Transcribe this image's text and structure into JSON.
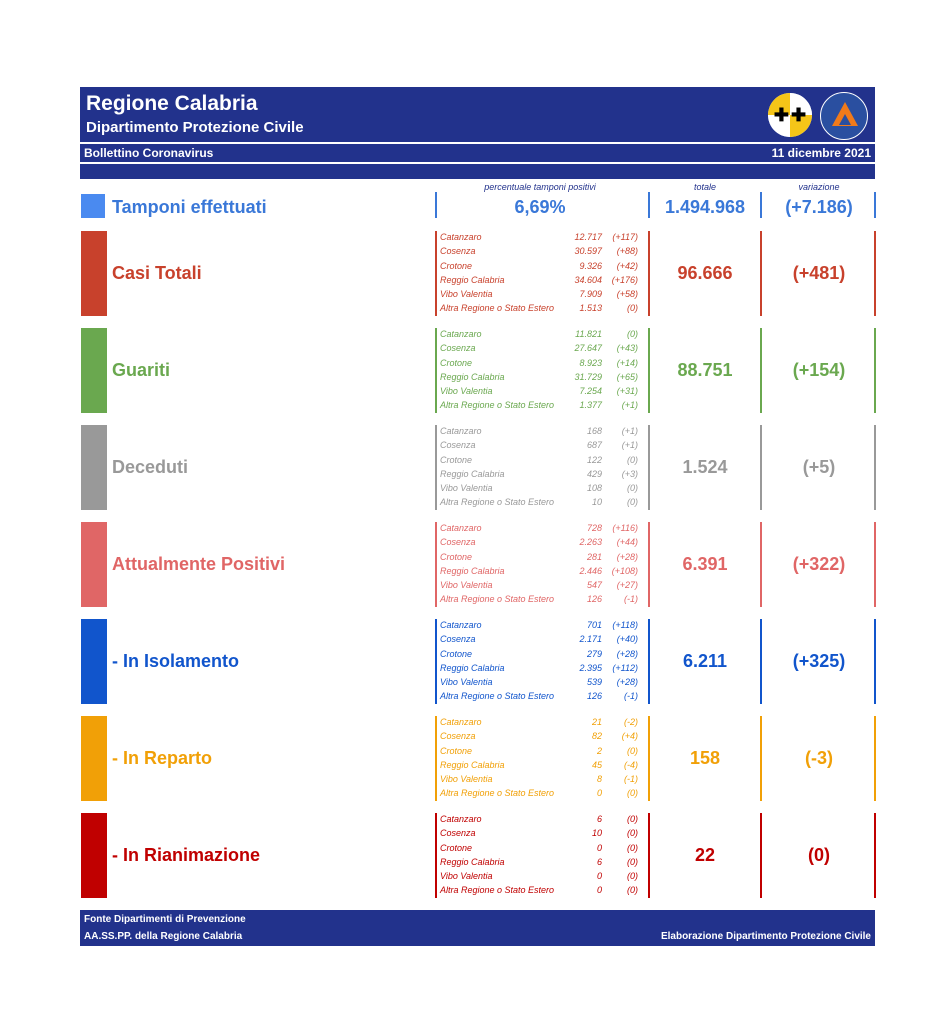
{
  "header": {
    "title": "Regione Calabria",
    "subtitle": "Dipartimento Protezione Civile",
    "bulletin": "Bollettino Coronavirus",
    "date": "11 dicembre 2021"
  },
  "columns": {
    "pct_label": "percentuale tamponi positivi",
    "total_label": "totale",
    "var_label": "variazione"
  },
  "tamponi": {
    "label": "Tamponi effettuati",
    "pct": "6,69%",
    "total": "1.494.968",
    "variation": "(+7.186)",
    "color": "#3a78d8"
  },
  "sections": [
    {
      "label": "Casi Totali",
      "color": "#c8412c",
      "total": "96.666",
      "variation": "(+481)",
      "provinces": [
        {
          "name": "Catanzaro",
          "value": "12.717",
          "delta": "(+117)"
        },
        {
          "name": "Cosenza",
          "value": "30.597",
          "delta": "(+88)"
        },
        {
          "name": "Crotone",
          "value": "9.326",
          "delta": "(+42)"
        },
        {
          "name": "Reggio Calabria",
          "value": "34.604",
          "delta": "(+176)"
        },
        {
          "name": "Vibo Valentia",
          "value": "7.909",
          "delta": "(+58)"
        },
        {
          "name": "Altra Regione o Stato Estero",
          "value": "1.513",
          "delta": "(0)"
        }
      ]
    },
    {
      "label": "Guariti",
      "color": "#6aa84f",
      "total": "88.751",
      "variation": "(+154)",
      "provinces": [
        {
          "name": "Catanzaro",
          "value": "11.821",
          "delta": "(0)"
        },
        {
          "name": "Cosenza",
          "value": "27.647",
          "delta": "(+43)"
        },
        {
          "name": "Crotone",
          "value": "8.923",
          "delta": "(+14)"
        },
        {
          "name": "Reggio Calabria",
          "value": "31.729",
          "delta": "(+65)"
        },
        {
          "name": "Vibo Valentia",
          "value": "7.254",
          "delta": "(+31)"
        },
        {
          "name": "Altra Regione o Stato Estero",
          "value": "1.377",
          "delta": "(+1)"
        }
      ]
    },
    {
      "label": "Deceduti",
      "color": "#999999",
      "total": "1.524",
      "variation": "(+5)",
      "provinces": [
        {
          "name": "Catanzaro",
          "value": "168",
          "delta": "(+1)"
        },
        {
          "name": "Cosenza",
          "value": "687",
          "delta": "(+1)"
        },
        {
          "name": "Crotone",
          "value": "122",
          "delta": "(0)"
        },
        {
          "name": "Reggio Calabria",
          "value": "429",
          "delta": "(+3)"
        },
        {
          "name": "Vibo Valentia",
          "value": "108",
          "delta": "(0)"
        },
        {
          "name": "Altra Regione o Stato Estero",
          "value": "10",
          "delta": "(0)"
        }
      ]
    },
    {
      "label": "Attualmente Positivi",
      "color": "#e06666",
      "total": "6.391",
      "variation": "(+322)",
      "provinces": [
        {
          "name": "Catanzaro",
          "value": "728",
          "delta": "(+116)"
        },
        {
          "name": "Cosenza",
          "value": "2.263",
          "delta": "(+44)"
        },
        {
          "name": "Crotone",
          "value": "281",
          "delta": "(+28)"
        },
        {
          "name": "Reggio Calabria",
          "value": "2.446",
          "delta": "(+108)"
        },
        {
          "name": "Vibo Valentia",
          "value": "547",
          "delta": "(+27)"
        },
        {
          "name": "Altra Regione o Stato Estero",
          "value": "126",
          "delta": "(-1)"
        }
      ]
    },
    {
      "label": " - In Isolamento",
      "color": "#1155cc",
      "total": "6.211",
      "variation": "(+325)",
      "provinces": [
        {
          "name": "Catanzaro",
          "value": "701",
          "delta": "(+118)"
        },
        {
          "name": "Cosenza",
          "value": "2.171",
          "delta": "(+40)"
        },
        {
          "name": "Crotone",
          "value": "279",
          "delta": "(+28)"
        },
        {
          "name": "Reggio Calabria",
          "value": "2.395",
          "delta": "(+112)"
        },
        {
          "name": "Vibo Valentia",
          "value": "539",
          "delta": "(+28)"
        },
        {
          "name": "Altra Regione o Stato Estero",
          "value": "126",
          "delta": "(-1)"
        }
      ]
    },
    {
      "label": " - In Reparto",
      "color": "#f1a007",
      "total": "158",
      "variation": "(-3)",
      "provinces": [
        {
          "name": "Catanzaro",
          "value": "21",
          "delta": "(-2)"
        },
        {
          "name": "Cosenza",
          "value": "82",
          "delta": "(+4)"
        },
        {
          "name": "Crotone",
          "value": "2",
          "delta": "(0)"
        },
        {
          "name": "Reggio Calabria",
          "value": "45",
          "delta": "(-4)"
        },
        {
          "name": "Vibo Valentia",
          "value": "8",
          "delta": "(-1)"
        },
        {
          "name": "Altra Regione o Stato Estero",
          "value": "0",
          "delta": "(0)"
        }
      ]
    },
    {
      "label": " - In Rianimazione",
      "color": "#c00000",
      "total": "22",
      "variation": "(0)",
      "provinces": [
        {
          "name": "Catanzaro",
          "value": "6",
          "delta": "(0)"
        },
        {
          "name": "Cosenza",
          "value": "10",
          "delta": "(0)"
        },
        {
          "name": "Crotone",
          "value": "0",
          "delta": "(0)"
        },
        {
          "name": "Reggio Calabria",
          "value": "6",
          "delta": "(0)"
        },
        {
          "name": "Vibo Valentia",
          "value": "0",
          "delta": "(0)"
        },
        {
          "name": "Altra Regione o Stato Estero",
          "value": "0",
          "delta": "(0)"
        }
      ]
    }
  ],
  "footer": {
    "source_line1": "Fonte Dipartimenti di Prevenzione",
    "source_line2": "AA.SS.PP.  della Regione Calabria",
    "credit": "Elaborazione Dipartimento Protezione Civile"
  }
}
